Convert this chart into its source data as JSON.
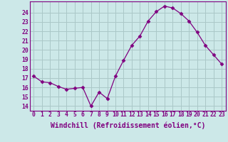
{
  "x": [
    0,
    1,
    2,
    3,
    4,
    5,
    6,
    7,
    8,
    9,
    10,
    11,
    12,
    13,
    14,
    15,
    16,
    17,
    18,
    19,
    20,
    21,
    22,
    23
  ],
  "y": [
    17.2,
    16.6,
    16.5,
    16.1,
    15.8,
    15.9,
    16.0,
    14.0,
    15.5,
    14.8,
    17.2,
    18.9,
    20.5,
    21.5,
    23.1,
    24.1,
    24.7,
    24.5,
    23.9,
    23.1,
    21.9,
    20.5,
    19.5,
    18.5
  ],
  "line_color": "#800080",
  "marker": "D",
  "marker_size": 2.5,
  "bg_color": "#cce8e8",
  "grid_color": "#aac8c8",
  "xlabel": "Windchill (Refroidissement éolien,°C)",
  "xtick_labels": [
    "0",
    "1",
    "2",
    "3",
    "4",
    "5",
    "6",
    "7",
    "8",
    "9",
    "10",
    "11",
    "12",
    "13",
    "14",
    "15",
    "16",
    "17",
    "18",
    "19",
    "20",
    "21",
    "22",
    "23"
  ],
  "ylabel_ticks": [
    14,
    15,
    16,
    17,
    18,
    19,
    20,
    21,
    22,
    23,
    24
  ],
  "ylim": [
    13.5,
    25.2
  ],
  "xlim": [
    -0.5,
    23.5
  ],
  "tick_fontsize": 5.8,
  "xlabel_fontsize": 7.0
}
